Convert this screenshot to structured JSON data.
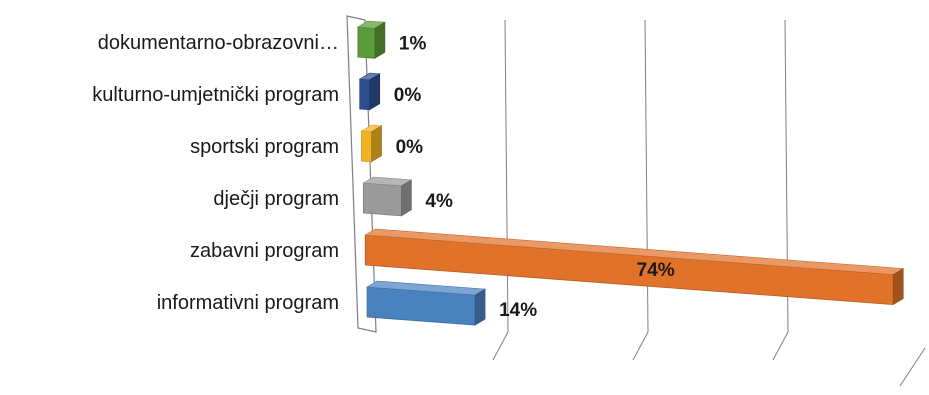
{
  "chart_data": {
    "type": "bar",
    "orientation": "horizontal",
    "three_d": true,
    "categories": [
      "dokumentarno-obrazovni…",
      "kulturno-umjetnički program",
      "sportski program",
      "dječji program",
      "zabavni program",
      "informativni program"
    ],
    "values": [
      1,
      0,
      0,
      4,
      74,
      14
    ],
    "value_labels": [
      "1%",
      "0%",
      "0%",
      "4%",
      "74%",
      "14%"
    ],
    "unit": "%",
    "colors": [
      "#5b9c3a",
      "#2e4f8f",
      "#f0b323",
      "#9a9a9a",
      "#e0722a",
      "#4a82c0"
    ],
    "xlim": [
      0,
      75
    ],
    "grid": true,
    "legend": "none",
    "title": "",
    "xlabel": "",
    "ylabel": ""
  }
}
